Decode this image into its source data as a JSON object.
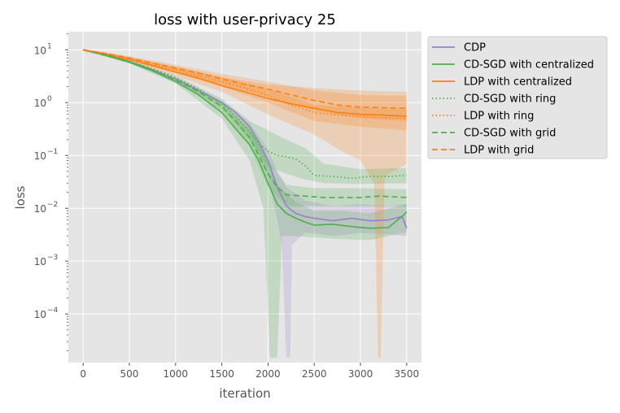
{
  "chart_data": {
    "type": "line",
    "title": "loss with user-privacy  25",
    "xlabel": "iteration",
    "ylabel": "loss",
    "yscale": "log",
    "grid": true,
    "background": "#e5e5e5",
    "legend_position": "outside-top-right",
    "xlim": [
      -160,
      3660
    ],
    "ylim": [
      1.2e-05,
      22
    ],
    "x_ticks": [
      "0",
      "500",
      "1000",
      "1500",
      "2000",
      "2500",
      "3000",
      "3500"
    ],
    "y_ticks": [
      {
        "value": 10,
        "mantissa": "10",
        "exponent": "1"
      },
      {
        "value": 1,
        "mantissa": "10",
        "exponent": "0"
      },
      {
        "value": 0.1,
        "mantissa": "10",
        "exponent": "−1"
      },
      {
        "value": 0.01,
        "mantissa": "10",
        "exponent": "−2"
      },
      {
        "value": 0.001,
        "mantissa": "10",
        "exponent": "−3"
      },
      {
        "value": 0.0001,
        "mantissa": "10",
        "exponent": "−4"
      }
    ],
    "series": [
      {
        "name": "CDP",
        "color": "#9a80c8",
        "style": "solid",
        "points": [
          [
            0,
            10
          ],
          [
            250,
            8.2
          ],
          [
            500,
            6
          ],
          [
            750,
            4.2
          ],
          [
            1000,
            2.8
          ],
          [
            1250,
            1.7
          ],
          [
            1500,
            1
          ],
          [
            1650,
            0.65
          ],
          [
            1800,
            0.35
          ],
          [
            1900,
            0.18
          ],
          [
            2000,
            0.08
          ],
          [
            2100,
            0.025
          ],
          [
            2200,
            0.011
          ],
          [
            2300,
            0.008
          ],
          [
            2400,
            0.007
          ],
          [
            2500,
            0.0065
          ],
          [
            2700,
            0.0058
          ],
          [
            2900,
            0.0065
          ],
          [
            3100,
            0.0058
          ],
          [
            3300,
            0.006
          ],
          [
            3450,
            0.007
          ],
          [
            3500,
            0.0042
          ]
        ],
        "band_lower": [
          [
            0,
            9.8
          ],
          [
            500,
            5.8
          ],
          [
            1000,
            2.6
          ],
          [
            1500,
            0.9
          ],
          [
            1800,
            0.28
          ],
          [
            2000,
            0.04
          ],
          [
            2100,
            0.006
          ],
          [
            2150,
            0.002
          ],
          [
            2200,
            1.5e-05
          ],
          [
            2240,
            1.5e-05
          ],
          [
            2260,
            0.002
          ],
          [
            2400,
            0.0035
          ],
          [
            2700,
            0.003
          ],
          [
            3000,
            0.0034
          ],
          [
            3300,
            0.0032
          ],
          [
            3500,
            0.003
          ]
        ],
        "band_upper": [
          [
            0,
            10.2
          ],
          [
            500,
            6.2
          ],
          [
            1000,
            3
          ],
          [
            1500,
            1.1
          ],
          [
            1800,
            0.42
          ],
          [
            2000,
            0.13
          ],
          [
            2100,
            0.05
          ],
          [
            2200,
            0.025
          ],
          [
            2400,
            0.014
          ],
          [
            2700,
            0.011
          ],
          [
            3000,
            0.012
          ],
          [
            3300,
            0.011
          ],
          [
            3500,
            0.012
          ]
        ]
      },
      {
        "name": "CD-SGD with centralized",
        "color": "#4daf4a",
        "style": "solid",
        "points": [
          [
            0,
            10
          ],
          [
            250,
            7.8
          ],
          [
            500,
            5.8
          ],
          [
            750,
            4
          ],
          [
            1000,
            2.5
          ],
          [
            1250,
            1.4
          ],
          [
            1500,
            0.65
          ],
          [
            1650,
            0.32
          ],
          [
            1800,
            0.16
          ],
          [
            1900,
            0.08
          ],
          [
            2000,
            0.03
          ],
          [
            2100,
            0.012
          ],
          [
            2200,
            0.008
          ],
          [
            2300,
            0.0065
          ],
          [
            2400,
            0.0055
          ],
          [
            2500,
            0.0048
          ],
          [
            2700,
            0.005
          ],
          [
            2900,
            0.0045
          ],
          [
            3100,
            0.0042
          ],
          [
            3300,
            0.0043
          ],
          [
            3450,
            0.007
          ],
          [
            3500,
            0.0085
          ]
        ],
        "band_lower": [
          [
            0,
            9.8
          ],
          [
            500,
            5.5
          ],
          [
            1000,
            2.3
          ],
          [
            1500,
            0.5
          ],
          [
            1800,
            0.08
          ],
          [
            1950,
            0.01
          ],
          [
            2020,
            1.5e-05
          ],
          [
            2100,
            1.5e-05
          ],
          [
            2150,
            0.003
          ],
          [
            2300,
            0.003
          ],
          [
            2500,
            0.0028
          ],
          [
            2800,
            0.0026
          ],
          [
            3100,
            0.0025
          ],
          [
            3500,
            0.0035
          ]
        ],
        "band_upper": [
          [
            0,
            10.2
          ],
          [
            500,
            6.1
          ],
          [
            1000,
            2.8
          ],
          [
            1500,
            0.85
          ],
          [
            1800,
            0.3
          ],
          [
            1900,
            0.2
          ],
          [
            2000,
            0.07
          ],
          [
            2100,
            0.028
          ],
          [
            2300,
            0.013
          ],
          [
            2500,
            0.009
          ],
          [
            2800,
            0.009
          ],
          [
            3100,
            0.008
          ],
          [
            3500,
            0.012
          ]
        ]
      },
      {
        "name": "LDP with centralized",
        "color": "#ff7f0e",
        "style": "solid",
        "points": [
          [
            0,
            10
          ],
          [
            250,
            8
          ],
          [
            500,
            6.5
          ],
          [
            750,
            5
          ],
          [
            1000,
            3.8
          ],
          [
            1250,
            2.9
          ],
          [
            1500,
            2.1
          ],
          [
            1750,
            1.6
          ],
          [
            2000,
            1.2
          ],
          [
            2250,
            0.95
          ],
          [
            2500,
            0.78
          ],
          [
            2750,
            0.65
          ],
          [
            3000,
            0.6
          ],
          [
            3250,
            0.58
          ],
          [
            3500,
            0.55
          ]
        ],
        "band_lower": [
          [
            0,
            9.5
          ],
          [
            500,
            6
          ],
          [
            1000,
            3.2
          ],
          [
            1500,
            1.6
          ],
          [
            2000,
            0.6
          ],
          [
            2300,
            0.35
          ],
          [
            2500,
            0.25
          ],
          [
            2800,
            0.12
          ],
          [
            3000,
            0.08
          ],
          [
            3150,
            0.03
          ],
          [
            3190,
            1.5e-05
          ],
          [
            3220,
            1.5e-05
          ],
          [
            3260,
            0.04
          ],
          [
            3500,
            0.07
          ]
        ],
        "band_upper": [
          [
            0,
            10.5
          ],
          [
            500,
            7.2
          ],
          [
            1000,
            4.8
          ],
          [
            1500,
            3
          ],
          [
            2000,
            2.2
          ],
          [
            2500,
            1.9
          ],
          [
            3000,
            1.7
          ],
          [
            3500,
            1.6
          ]
        ]
      },
      {
        "name": "CD-SGD with ring",
        "color": "#4daf4a",
        "style": "dotted",
        "points": [
          [
            0,
            10
          ],
          [
            250,
            8.1
          ],
          [
            500,
            6
          ],
          [
            750,
            4.4
          ],
          [
            1000,
            3
          ],
          [
            1250,
            1.8
          ],
          [
            1500,
            0.95
          ],
          [
            1650,
            0.55
          ],
          [
            1800,
            0.28
          ],
          [
            1900,
            0.17
          ],
          [
            2000,
            0.12
          ],
          [
            2100,
            0.1
          ],
          [
            2200,
            0.095
          ],
          [
            2300,
            0.085
          ],
          [
            2400,
            0.065
          ],
          [
            2500,
            0.042
          ],
          [
            2700,
            0.04
          ],
          [
            2900,
            0.037
          ],
          [
            3100,
            0.04
          ],
          [
            3300,
            0.04
          ],
          [
            3500,
            0.042
          ]
        ],
        "band_lower": [
          [
            0,
            9.8
          ],
          [
            500,
            5.8
          ],
          [
            1000,
            2.8
          ],
          [
            1500,
            0.8
          ],
          [
            1800,
            0.2
          ],
          [
            2000,
            0.06
          ],
          [
            2200,
            0.045
          ],
          [
            2400,
            0.035
          ],
          [
            2600,
            0.03
          ],
          [
            3000,
            0.029
          ],
          [
            3500,
            0.03
          ]
        ],
        "band_upper": [
          [
            0,
            10.2
          ],
          [
            500,
            6.3
          ],
          [
            1000,
            3.2
          ],
          [
            1500,
            1.2
          ],
          [
            1800,
            0.45
          ],
          [
            2000,
            0.3
          ],
          [
            2200,
            0.2
          ],
          [
            2400,
            0.14
          ],
          [
            2600,
            0.07
          ],
          [
            3000,
            0.055
          ],
          [
            3500,
            0.058
          ]
        ]
      },
      {
        "name": "LDP with ring",
        "color": "#ff7f0e",
        "style": "dotted",
        "points": [
          [
            0,
            10
          ],
          [
            250,
            8.3
          ],
          [
            500,
            6.8
          ],
          [
            750,
            5.3
          ],
          [
            1000,
            4.2
          ],
          [
            1250,
            3.2
          ],
          [
            1500,
            2.5
          ],
          [
            1750,
            1.9
          ],
          [
            2000,
            1.35
          ],
          [
            2250,
            0.9
          ],
          [
            2500,
            0.65
          ],
          [
            2750,
            0.58
          ],
          [
            3000,
            0.55
          ],
          [
            3250,
            0.52
          ],
          [
            3500,
            0.5
          ]
        ],
        "band_lower": [
          [
            0,
            9.7
          ],
          [
            500,
            6.3
          ],
          [
            1000,
            3.6
          ],
          [
            1500,
            2
          ],
          [
            2000,
            1
          ],
          [
            2500,
            0.45
          ],
          [
            3000,
            0.35
          ],
          [
            3500,
            0.3
          ]
        ],
        "band_upper": [
          [
            0,
            10.3
          ],
          [
            500,
            7.3
          ],
          [
            1000,
            4.8
          ],
          [
            1500,
            3.1
          ],
          [
            2000,
            1.8
          ],
          [
            2500,
            0.9
          ],
          [
            3000,
            0.8
          ],
          [
            3500,
            0.75
          ]
        ]
      },
      {
        "name": "CD-SGD with grid",
        "color": "#4daf4a",
        "style": "dashed",
        "points": [
          [
            0,
            10
          ],
          [
            250,
            8
          ],
          [
            500,
            5.9
          ],
          [
            750,
            4.1
          ],
          [
            1000,
            2.7
          ],
          [
            1250,
            1.6
          ],
          [
            1500,
            0.85
          ],
          [
            1650,
            0.45
          ],
          [
            1800,
            0.22
          ],
          [
            1900,
            0.1
          ],
          [
            2000,
            0.045
          ],
          [
            2100,
            0.025
          ],
          [
            2200,
            0.018
          ],
          [
            2400,
            0.017
          ],
          [
            2600,
            0.016
          ],
          [
            2800,
            0.016
          ],
          [
            3000,
            0.016
          ],
          [
            3200,
            0.017
          ],
          [
            3500,
            0.016
          ]
        ],
        "band_lower": [
          [
            0,
            9.8
          ],
          [
            500,
            5.7
          ],
          [
            1000,
            2.5
          ],
          [
            1500,
            0.7
          ],
          [
            1800,
            0.15
          ],
          [
            2000,
            0.025
          ],
          [
            2200,
            0.011
          ],
          [
            2500,
            0.011
          ],
          [
            3000,
            0.011
          ],
          [
            3500,
            0.011
          ]
        ],
        "band_upper": [
          [
            0,
            10.2
          ],
          [
            500,
            6.2
          ],
          [
            1000,
            2.9
          ],
          [
            1500,
            1
          ],
          [
            1800,
            0.32
          ],
          [
            2000,
            0.08
          ],
          [
            2200,
            0.028
          ],
          [
            2500,
            0.024
          ],
          [
            3000,
            0.024
          ],
          [
            3500,
            0.023
          ]
        ]
      },
      {
        "name": "LDP with grid",
        "color": "#ff7f0e",
        "style": "dashed",
        "points": [
          [
            0,
            10
          ],
          [
            250,
            8.5
          ],
          [
            500,
            7
          ],
          [
            750,
            5.6
          ],
          [
            1000,
            4.5
          ],
          [
            1250,
            3.6
          ],
          [
            1500,
            2.8
          ],
          [
            1750,
            2.2
          ],
          [
            2000,
            1.8
          ],
          [
            2250,
            1.4
          ],
          [
            2500,
            1.1
          ],
          [
            2750,
            0.9
          ],
          [
            3000,
            0.82
          ],
          [
            3250,
            0.8
          ],
          [
            3500,
            0.78
          ]
        ],
        "band_lower": [
          [
            0,
            9.7
          ],
          [
            500,
            6.5
          ],
          [
            1000,
            3.9
          ],
          [
            1500,
            2.2
          ],
          [
            2000,
            1.3
          ],
          [
            2500,
            0.7
          ],
          [
            3000,
            0.5
          ],
          [
            3500,
            0.45
          ]
        ],
        "band_upper": [
          [
            0,
            10.3
          ],
          [
            500,
            7.6
          ],
          [
            1000,
            5.2
          ],
          [
            1500,
            3.5
          ],
          [
            2000,
            2.5
          ],
          [
            2500,
            1.7
          ],
          [
            3000,
            1.4
          ],
          [
            3500,
            1.35
          ]
        ]
      }
    ]
  }
}
